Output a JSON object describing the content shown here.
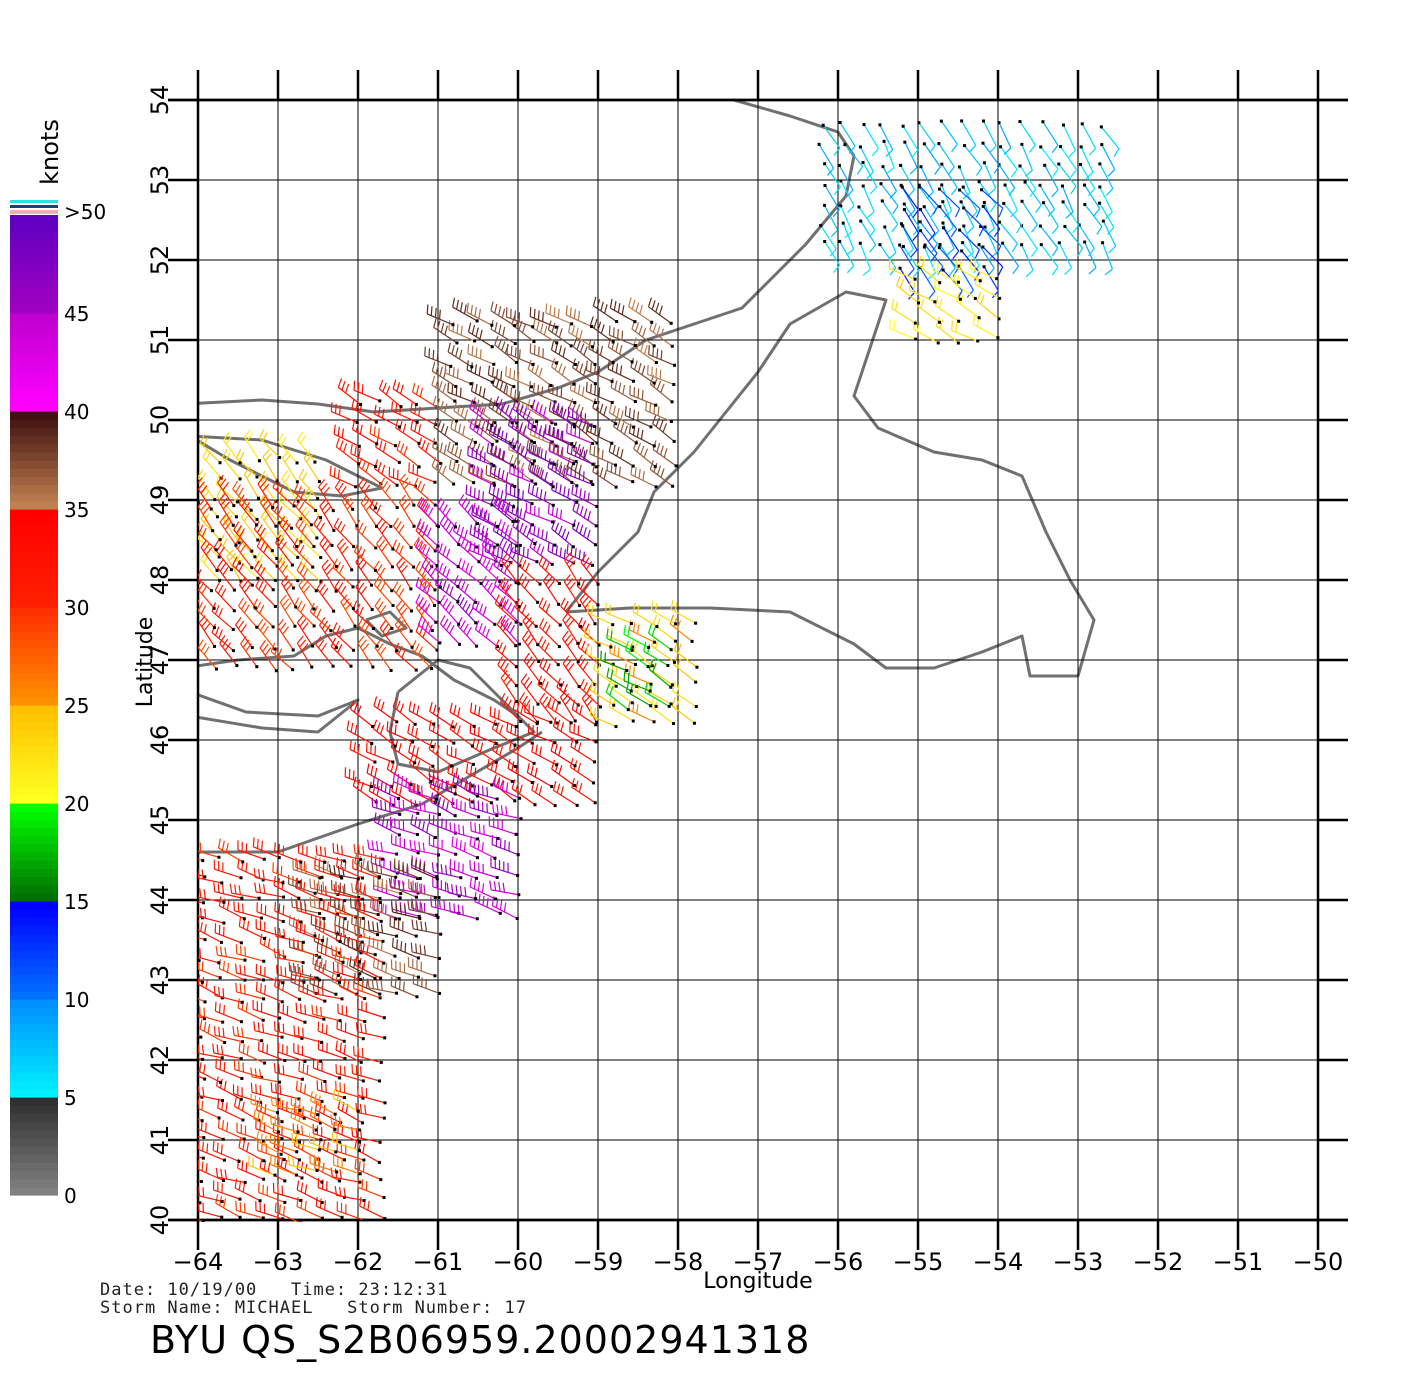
{
  "chart_data": {
    "type": "map",
    "xlabel": "Longitude",
    "ylabel": "Latitude",
    "xlim": [
      -64,
      -50
    ],
    "ylim": [
      40,
      54
    ],
    "x_ticks": [
      "-64",
      "-63",
      "-62",
      "-61",
      "-60",
      "-59",
      "-58",
      "-57",
      "-56",
      "-55",
      "-54",
      "-53",
      "-52",
      "-51",
      "-50"
    ],
    "y_ticks": [
      "40",
      "41",
      "42",
      "43",
      "44",
      "45",
      "46",
      "47",
      "48",
      "49",
      "50",
      "51",
      "52",
      "53",
      "54"
    ],
    "grid": true,
    "colorbar": {
      "unit": "knots",
      "tick_labels": [
        "0",
        "5",
        "10",
        "15",
        "20",
        "25",
        "30",
        "35",
        "40",
        "45",
        ">50"
      ],
      "bands": [
        {
          "from": 0,
          "to": 5,
          "colors": [
            "#808080",
            "#303030"
          ]
        },
        {
          "from": 5,
          "to": 10,
          "colors": [
            "#00f0ff",
            "#0090ff"
          ]
        },
        {
          "from": 10,
          "to": 15,
          "colors": [
            "#0070ff",
            "#0000ff"
          ]
        },
        {
          "from": 15,
          "to": 20,
          "colors": [
            "#007000",
            "#00ff00"
          ]
        },
        {
          "from": 20,
          "to": 25,
          "colors": [
            "#ffff20",
            "#ffc000"
          ]
        },
        {
          "from": 25,
          "to": 30,
          "colors": [
            "#ff9000",
            "#ff3000"
          ]
        },
        {
          "from": 30,
          "to": 35,
          "colors": [
            "#ff2000",
            "#ff0000"
          ]
        },
        {
          "from": 35,
          "to": 40,
          "colors": [
            "#c08050",
            "#401010"
          ]
        },
        {
          "from": 40,
          "to": 45,
          "colors": [
            "#ff00ff",
            "#c000d0"
          ]
        },
        {
          "from": 45,
          "to": 50,
          "colors": [
            "#a000c0",
            "#6000c0"
          ]
        }
      ]
    },
    "wind_regions": [
      {
        "lon": [
          -56.2,
          -52.5
        ],
        "lat": [
          52.2,
          53.9
        ],
        "speed": 7,
        "dir": 150
      },
      {
        "lon": [
          -55.2,
          -54.0
        ],
        "lat": [
          51.9,
          53.0
        ],
        "speed": 12,
        "dir": 140
      },
      {
        "lon": [
          -55.0,
          -54.0
        ],
        "lat": [
          51.0,
          51.9
        ],
        "speed": 22,
        "dir": 300
      },
      {
        "lon": [
          -62.0,
          -60.8
        ],
        "lat": [
          49.2,
          50.2
        ],
        "speed": 31,
        "dir": 300
      },
      {
        "lon": [
          -60.8,
          -58.0
        ],
        "lat": [
          49.2,
          51.2
        ],
        "speed": 37,
        "dir": 300
      },
      {
        "lon": [
          -60.3,
          -59.0
        ],
        "lat": [
          48.2,
          50.0
        ],
        "speed": 46,
        "dir": 300
      },
      {
        "lon": [
          -64.0,
          -62.4
        ],
        "lat": [
          48.0,
          49.5
        ],
        "speed": 23,
        "dir": 320
      },
      {
        "lon": [
          -63.8,
          -61.0
        ],
        "lat": [
          46.9,
          49.0
        ],
        "speed": 30,
        "dir": 320
      },
      {
        "lon": [
          -61.0,
          -60.0
        ],
        "lat": [
          47.2,
          48.8
        ],
        "speed": 44,
        "dir": 310
      },
      {
        "lon": [
          -60.0,
          -58.8
        ],
        "lat": [
          46.2,
          48.0
        ],
        "speed": 32,
        "dir": 320
      },
      {
        "lon": [
          -58.8,
          -57.8
        ],
        "lat": [
          46.2,
          47.6
        ],
        "speed": 24,
        "dir": 300
      },
      {
        "lon": [
          -58.6,
          -58.0
        ],
        "lat": [
          46.4,
          47.2
        ],
        "speed": 18,
        "dir": 300
      },
      {
        "lon": [
          -61.8,
          -59.0
        ],
        "lat": [
          45.2,
          46.2
        ],
        "speed": 33,
        "dir": 300
      },
      {
        "lon": [
          -61.5,
          -60.0
        ],
        "lat": [
          43.8,
          45.3
        ],
        "speed": 44,
        "dir": 290
      },
      {
        "lon": [
          -62.5,
          -61.0
        ],
        "lat": [
          42.8,
          44.5
        ],
        "speed": 37,
        "dir": 290
      },
      {
        "lon": [
          -64.2,
          -61.5
        ],
        "lat": [
          40.0,
          44.5
        ],
        "speed": 31,
        "dir": 290
      },
      {
        "lon": [
          -63.0,
          -62.0
        ],
        "lat": [
          40.6,
          41.4
        ],
        "speed": 26,
        "dir": 290
      }
    ]
  },
  "footer": {
    "date_line": "Date: 10/19/00   Time: 23:12:31",
    "storm_line": "Storm Name: MICHAEL   Storm Number: 17",
    "title": "BYU QS_S2B06959.20002941318"
  }
}
